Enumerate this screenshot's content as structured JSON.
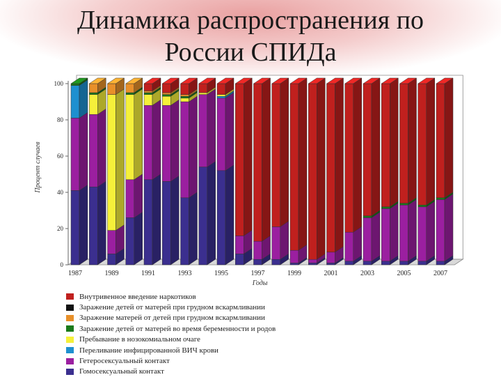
{
  "slide": {
    "title_line1": "Динамика распространения по",
    "title_line2": "России СПИДа"
  },
  "chart_data": {
    "type": "bar",
    "stacked": true,
    "three_d": true,
    "ylabel": "Процент случаев",
    "xlabel": "Годы",
    "ylim": [
      0,
      100
    ],
    "y_ticks": [
      "0",
      "20",
      "40",
      "60",
      "80",
      "100"
    ],
    "x_tick_labels": [
      "1987",
      "1989",
      "1991",
      "1993",
      "1995",
      "1997",
      "1999",
      "2001",
      "2003",
      "2005",
      "2007"
    ],
    "categories": [
      "1987",
      "1988",
      "1989",
      "1990",
      "1991",
      "1992",
      "1993",
      "1994",
      "1995",
      "1996",
      "1997",
      "1998",
      "1999",
      "2000",
      "2001",
      "2002",
      "2003",
      "2004",
      "2005",
      "2006",
      "2007"
    ],
    "legend_position": "bottom",
    "series": [
      {
        "name": "Гомосексуальный контакт",
        "color": "#3b2f8f",
        "values": [
          41,
          43,
          6,
          26,
          47,
          46,
          37,
          54,
          52,
          6,
          3,
          3,
          1,
          1,
          1,
          2,
          2,
          2,
          2,
          2,
          2
        ]
      },
      {
        "name": "Гетеросексуальный контакт",
        "color": "#9b1fa0",
        "values": [
          40,
          40,
          13,
          21,
          41,
          42,
          53,
          40,
          40,
          10,
          10,
          18,
          7,
          2,
          6,
          16,
          24,
          29,
          31,
          30,
          34
        ]
      },
      {
        "name": "Переливание инфицированной ВИЧ крови",
        "color": "#1e90d0",
        "values": [
          18,
          0,
          0,
          0,
          0,
          0,
          0,
          0,
          1,
          0,
          0,
          0,
          0,
          0,
          0,
          0,
          0,
          0,
          0,
          0,
          0
        ]
      },
      {
        "name": "Пребывание в нозокомиальном очаге",
        "color": "#f5f03a",
        "values": [
          0,
          11,
          75,
          47,
          6,
          5,
          2,
          1,
          1,
          0,
          0,
          0,
          0,
          0,
          0,
          0,
          0,
          0,
          0,
          0,
          0
        ]
      },
      {
        "name": "Заражение детей от матерей во время беременности и  родов",
        "color": "#1a7a1a",
        "values": [
          1,
          1,
          0,
          1,
          1,
          1,
          1,
          0,
          0,
          0,
          0,
          0,
          0,
          0,
          0,
          0,
          1,
          1,
          1,
          1,
          1
        ]
      },
      {
        "name": "Заражение матерей от детей при грудном вскармливании",
        "color": "#e8902a",
        "values": [
          0,
          5,
          6,
          5,
          1,
          1,
          1,
          0,
          0,
          0,
          0,
          0,
          0,
          0,
          0,
          0,
          0,
          0,
          0,
          0,
          0
        ]
      },
      {
        "name": "Заражение детей от матерей при грудном вскармливании",
        "color": "#111111",
        "values": [
          0,
          0,
          0,
          0,
          0,
          0,
          0,
          0,
          0,
          0,
          0,
          0,
          0,
          0,
          0,
          0,
          0,
          0,
          0,
          0,
          0
        ]
      },
      {
        "name": "Внутривенное введение наркотиков",
        "color": "#c0201e",
        "values": [
          0,
          0,
          0,
          0,
          4,
          5,
          6,
          5,
          6,
          84,
          87,
          79,
          92,
          97,
          93,
          82,
          73,
          68,
          66,
          67,
          63
        ]
      }
    ]
  }
}
